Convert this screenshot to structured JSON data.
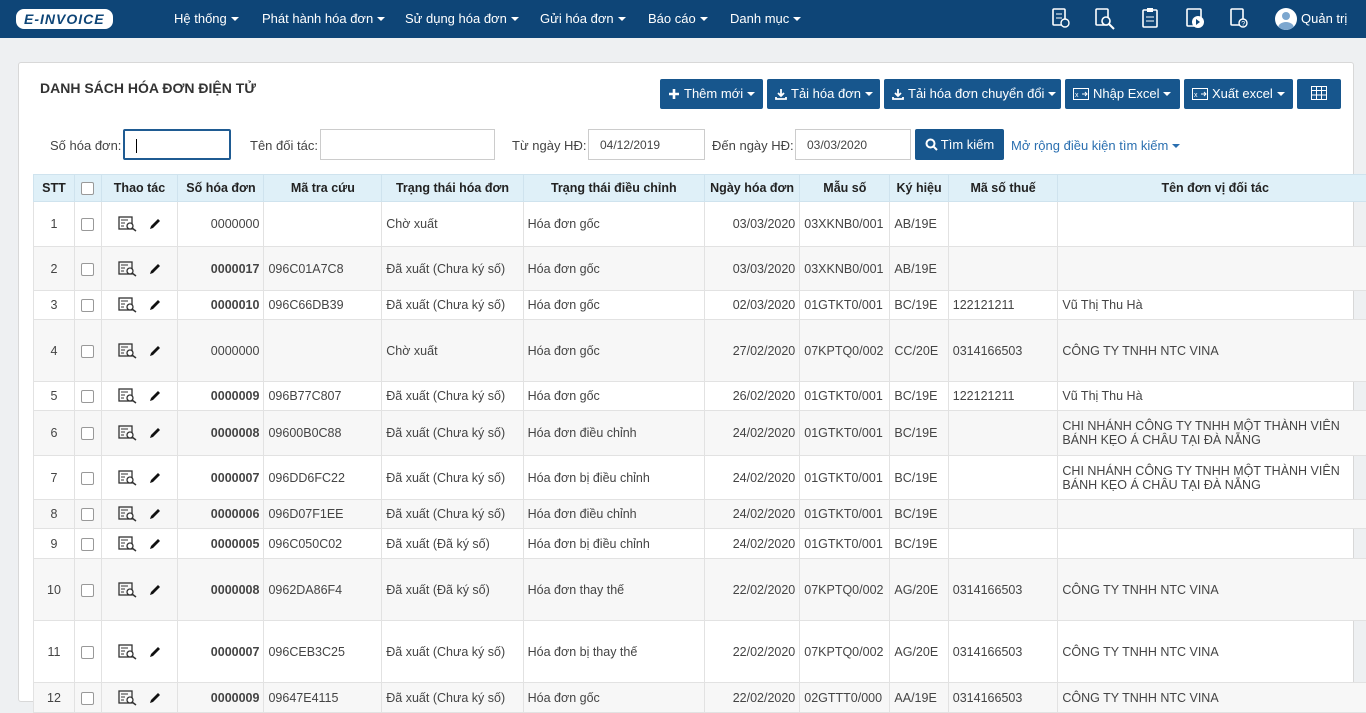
{
  "nav": {
    "logo": "E-INVOICE",
    "menu": [
      "Hệ thống",
      "Phát hành hóa đơn",
      "Sử dụng hóa đơn",
      "Gửi hóa đơn",
      "Báo cáo",
      "Danh mục"
    ],
    "user": "Quản trị"
  },
  "panel": {
    "title": "DANH SÁCH HÓA ĐƠN ĐIỆN TỬ",
    "buttons": [
      "Thêm mới",
      "Tải hóa đơn",
      "Tải hóa đơn chuyển đổi",
      "Nhập Excel",
      "Xuất excel"
    ],
    "filters": {
      "invoice_no_label": "Số hóa đơn:",
      "partner_label": "Tên đối tác:",
      "from_label": "Từ ngày HĐ:",
      "from_value": "04/12/2019",
      "to_label": "Đến ngày HĐ:",
      "to_value": "03/03/2020",
      "search": "Tìm kiếm",
      "expand": "Mở rộng điều kiện tìm kiếm"
    }
  },
  "table": {
    "headers": [
      "STT",
      "Thao tác",
      "Số hóa đơn",
      "Mã tra cứu",
      "Trạng thái hóa đơn",
      "Trạng thái điều chỉnh",
      "Ngày hóa đơn",
      "Mẫu số",
      "Ký hiệu",
      "Mã số thuế",
      "Tên đơn vị đối tác"
    ],
    "rows": [
      {
        "stt": 1,
        "invoice_no": "0000000",
        "status": "Chờ xuất",
        "adjustment": "Hóa đơn gốc",
        "date": "03/03/2020",
        "form": "03XKNB0/001",
        "serial": "AB/19E"
      },
      {
        "stt": 2,
        "invoice_no": "0000017",
        "lookup_code": "096C01A7C8",
        "status": "Đã xuất (Chưa ký số)",
        "adjustment": "Hóa đơn gốc",
        "date": "03/03/2020",
        "form": "03XKNB0/001",
        "serial": "AB/19E"
      },
      {
        "stt": 3,
        "invoice_no": "0000010",
        "lookup_code": "096C66DB39",
        "status": "Đã xuất (Chưa ký số)",
        "adjustment": "Hóa đơn gốc",
        "date": "02/03/2020",
        "form": "01GTKT0/001",
        "serial": "BC/19E",
        "tax_code": "122121211",
        "partner": "Vũ Thị Thu Hà"
      },
      {
        "stt": 4,
        "invoice_no": "0000000",
        "status": "Chờ xuất",
        "adjustment": "Hóa đơn gốc",
        "date": "27/02/2020",
        "form": "07KPTQ0/002",
        "serial": "CC/20E",
        "tax_code": "0314166503",
        "partner": "CÔNG TY TNHH NTC VINA"
      },
      {
        "stt": 5,
        "invoice_no": "0000009",
        "lookup_code": "096B77C807",
        "status": "Đã xuất (Chưa ký số)",
        "adjustment": "Hóa đơn gốc",
        "date": "26/02/2020",
        "form": "01GTKT0/001",
        "serial": "BC/19E",
        "tax_code": "122121211",
        "partner": "Vũ Thị Thu Hà"
      },
      {
        "stt": 6,
        "invoice_no": "0000008",
        "lookup_code": "09600B0C88",
        "status": "Đã xuất (Chưa ký số)",
        "adjustment": "Hóa đơn điều chỉnh",
        "date": "24/02/2020",
        "form": "01GTKT0/001",
        "serial": "BC/19E",
        "partner": "CHI NHÁNH CÔNG TY TNHH MỘT THÀNH VIÊN BÁNH KẸO Á CHÂU TẠI ĐÀ NẴNG"
      },
      {
        "stt": 7,
        "invoice_no": "0000007",
        "lookup_code": "096DD6FC22",
        "status": "Đã xuất (Chưa ký số)",
        "adjustment": "Hóa đơn bị điều chỉnh",
        "date": "24/02/2020",
        "form": "01GTKT0/001",
        "serial": "BC/19E",
        "partner": "CHI NHÁNH CÔNG TY TNHH MỘT THÀNH VIÊN BÁNH KẸO Á CHÂU TẠI ĐÀ NẴNG"
      },
      {
        "stt": 8,
        "invoice_no": "0000006",
        "lookup_code": "096D07F1EE",
        "status": "Đã xuất (Chưa ký số)",
        "adjustment": "Hóa đơn điều chỉnh",
        "date": "24/02/2020",
        "form": "01GTKT0/001",
        "serial": "BC/19E"
      },
      {
        "stt": 9,
        "invoice_no": "0000005",
        "lookup_code": "096C050C02",
        "status": "Đã xuất (Đã ký số)",
        "adjustment": "Hóa đơn bị điều chỉnh",
        "date": "24/02/2020",
        "form": "01GTKT0/001",
        "serial": "BC/19E"
      },
      {
        "stt": 10,
        "invoice_no": "0000008",
        "lookup_code": "0962DA86F4",
        "status": "Đã xuất (Đã ký số)",
        "adjustment": "Hóa đơn thay thế",
        "date": "22/02/2020",
        "form": "07KPTQ0/002",
        "serial": "AG/20E",
        "tax_code": "0314166503",
        "partner": "CÔNG TY TNHH NTC VINA"
      },
      {
        "stt": 11,
        "invoice_no": "0000007",
        "lookup_code": "096CEB3C25",
        "status": "Đã xuất (Chưa ký số)",
        "adjustment": "Hóa đơn bị thay thế",
        "date": "22/02/2020",
        "form": "07KPTQ0/002",
        "serial": "AG/20E",
        "tax_code": "0314166503",
        "partner": "CÔNG TY TNHH NTC VINA"
      },
      {
        "stt": 12,
        "invoice_no": "0000009",
        "lookup_code": "09647E4115",
        "status": "Đã xuất (Chưa ký số)",
        "adjustment": "Hóa đơn gốc",
        "date": "22/02/2020",
        "form": "02GTTT0/000",
        "serial": "AA/19E",
        "tax_code": "0314166503",
        "partner": "CÔNG TY TNHH NTC VINA"
      }
    ]
  }
}
